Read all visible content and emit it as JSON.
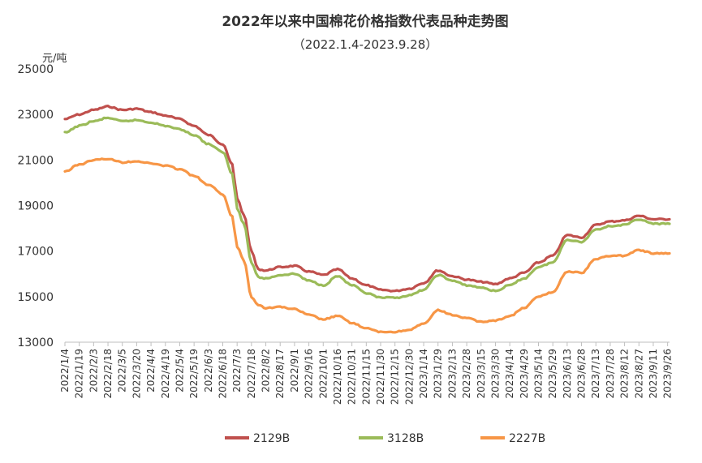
{
  "chart_data": {
    "type": "line",
    "title": "2022年以来中国棉花价格指数代表品种走势图",
    "subtitle": "（2022.1.4-2023.9.28）",
    "ylabel": "元/吨",
    "xlabel": "",
    "ylim": [
      13000,
      25000
    ],
    "yticks": [
      13000,
      15000,
      17000,
      19000,
      21000,
      23000,
      25000
    ],
    "grid": false,
    "legend_position": "bottom",
    "x_tick_labels": [
      "2022/1/4",
      "2022/1/19",
      "2022/2/3",
      "2022/2/18",
      "2022/3/5",
      "2022/3/20",
      "2022/4/4",
      "2022/4/19",
      "2022/5/4",
      "2022/5/19",
      "2022/6/3",
      "2022/6/18",
      "2022/7/3",
      "2022/7/18",
      "2022/8/2",
      "2022/8/17",
      "2022/9/1",
      "2022/9/16",
      "2022/10/1",
      "2022/10/16",
      "2022/10/31",
      "2022/11/15",
      "2022/11/30",
      "2022/12/15",
      "2022/12/30",
      "2023/1/14",
      "2023/1/29",
      "2023/2/13",
      "2023/2/28",
      "2023/3/15",
      "2023/3/30",
      "2023/4/14",
      "2023/4/29",
      "2023/5/14",
      "2023/5/29",
      "2023/6/13",
      "2023/6/28",
      "2023/7/13",
      "2023/7/28",
      "2023/8/12",
      "2023/8/27",
      "2023/9/11",
      "2023/9/26"
    ],
    "x_start": "2022/1/4",
    "x_end": "2023/9/28",
    "series": [
      {
        "name": "2129B",
        "color": "#C0504D",
        "points": [
          [
            "2022/1/4",
            22800
          ],
          [
            "2022/1/19",
            23000
          ],
          [
            "2022/2/3",
            23200
          ],
          [
            "2022/2/18",
            23350
          ],
          [
            "2022/3/5",
            23200
          ],
          [
            "2022/3/20",
            23250
          ],
          [
            "2022/4/4",
            23100
          ],
          [
            "2022/4/19",
            22950
          ],
          [
            "2022/5/4",
            22800
          ],
          [
            "2022/5/19",
            22500
          ],
          [
            "2022/6/3",
            22100
          ],
          [
            "2022/6/18",
            21700
          ],
          [
            "2022/6/28",
            20800
          ],
          [
            "2022/7/3",
            19300
          ],
          [
            "2022/7/10",
            18600
          ],
          [
            "2022/7/18",
            17000
          ],
          [
            "2022/7/25",
            16200
          ],
          [
            "2022/8/2",
            16150
          ],
          [
            "2022/8/17",
            16300
          ],
          [
            "2022/9/1",
            16350
          ],
          [
            "2022/9/16",
            16100
          ],
          [
            "2022/10/1",
            15950
          ],
          [
            "2022/10/16",
            16200
          ],
          [
            "2022/10/31",
            15800
          ],
          [
            "2022/11/15",
            15500
          ],
          [
            "2022/11/30",
            15300
          ],
          [
            "2022/12/15",
            15250
          ],
          [
            "2022/12/30",
            15350
          ],
          [
            "2023/1/14",
            15600
          ],
          [
            "2023/1/29",
            16150
          ],
          [
            "2023/2/13",
            15900
          ],
          [
            "2023/2/28",
            15750
          ],
          [
            "2023/3/15",
            15650
          ],
          [
            "2023/3/30",
            15550
          ],
          [
            "2023/4/14",
            15800
          ],
          [
            "2023/4/29",
            16050
          ],
          [
            "2023/5/14",
            16500
          ],
          [
            "2023/5/29",
            16800
          ],
          [
            "2023/6/13",
            17700
          ],
          [
            "2023/6/28",
            17600
          ],
          [
            "2023/7/13",
            18150
          ],
          [
            "2023/7/28",
            18300
          ],
          [
            "2023/8/12",
            18350
          ],
          [
            "2023/8/27",
            18550
          ],
          [
            "2023/9/11",
            18400
          ],
          [
            "2023/9/28",
            18400
          ]
        ]
      },
      {
        "name": "3128B",
        "color": "#9BBB59",
        "points": [
          [
            "2022/1/4",
            22200
          ],
          [
            "2022/1/19",
            22500
          ],
          [
            "2022/2/3",
            22700
          ],
          [
            "2022/2/18",
            22850
          ],
          [
            "2022/3/5",
            22700
          ],
          [
            "2022/3/20",
            22750
          ],
          [
            "2022/4/4",
            22650
          ],
          [
            "2022/4/19",
            22500
          ],
          [
            "2022/5/4",
            22350
          ],
          [
            "2022/5/19",
            22100
          ],
          [
            "2022/6/3",
            21700
          ],
          [
            "2022/6/18",
            21350
          ],
          [
            "2022/6/28",
            20400
          ],
          [
            "2022/7/3",
            18900
          ],
          [
            "2022/7/10",
            18200
          ],
          [
            "2022/7/18",
            16500
          ],
          [
            "2022/7/25",
            15850
          ],
          [
            "2022/8/2",
            15800
          ],
          [
            "2022/8/17",
            15950
          ],
          [
            "2022/9/1",
            16000
          ],
          [
            "2022/9/16",
            15700
          ],
          [
            "2022/10/1",
            15500
          ],
          [
            "2022/10/16",
            15900
          ],
          [
            "2022/10/31",
            15500
          ],
          [
            "2022/11/15",
            15150
          ],
          [
            "2022/11/30",
            14950
          ],
          [
            "2022/12/15",
            14950
          ],
          [
            "2022/12/30",
            15050
          ],
          [
            "2023/1/14",
            15300
          ],
          [
            "2023/1/29",
            15950
          ],
          [
            "2023/2/13",
            15700
          ],
          [
            "2023/2/28",
            15500
          ],
          [
            "2023/3/15",
            15400
          ],
          [
            "2023/3/30",
            15250
          ],
          [
            "2023/4/14",
            15500
          ],
          [
            "2023/4/29",
            15800
          ],
          [
            "2023/5/14",
            16300
          ],
          [
            "2023/5/29",
            16500
          ],
          [
            "2023/6/13",
            17500
          ],
          [
            "2023/6/28",
            17400
          ],
          [
            "2023/7/13",
            17950
          ],
          [
            "2023/7/28",
            18100
          ],
          [
            "2023/8/12",
            18150
          ],
          [
            "2023/8/27",
            18400
          ],
          [
            "2023/9/11",
            18200
          ],
          [
            "2023/9/28",
            18200
          ]
        ]
      },
      {
        "name": "2227B",
        "color": "#F79646",
        "points": [
          [
            "2022/1/4",
            20500
          ],
          [
            "2022/1/19",
            20800
          ],
          [
            "2022/2/3",
            21000
          ],
          [
            "2022/2/18",
            21050
          ],
          [
            "2022/3/5",
            20900
          ],
          [
            "2022/3/20",
            20950
          ],
          [
            "2022/4/4",
            20850
          ],
          [
            "2022/4/19",
            20750
          ],
          [
            "2022/5/4",
            20600
          ],
          [
            "2022/5/19",
            20300
          ],
          [
            "2022/6/3",
            19900
          ],
          [
            "2022/6/18",
            19500
          ],
          [
            "2022/6/28",
            18500
          ],
          [
            "2022/7/3",
            17200
          ],
          [
            "2022/7/10",
            16600
          ],
          [
            "2022/7/18",
            15000
          ],
          [
            "2022/7/25",
            14650
          ],
          [
            "2022/8/2",
            14500
          ],
          [
            "2022/8/17",
            14550
          ],
          [
            "2022/9/1",
            14450
          ],
          [
            "2022/9/16",
            14200
          ],
          [
            "2022/10/1",
            14000
          ],
          [
            "2022/10/16",
            14150
          ],
          [
            "2022/10/31",
            13850
          ],
          [
            "2022/11/15",
            13600
          ],
          [
            "2022/11/30",
            13450
          ],
          [
            "2022/12/15",
            13450
          ],
          [
            "2022/12/30",
            13550
          ],
          [
            "2023/1/14",
            13800
          ],
          [
            "2023/1/29",
            14400
          ],
          [
            "2023/2/13",
            14200
          ],
          [
            "2023/2/28",
            14050
          ],
          [
            "2023/3/15",
            13900
          ],
          [
            "2023/3/30",
            13950
          ],
          [
            "2023/4/14",
            14150
          ],
          [
            "2023/4/29",
            14500
          ],
          [
            "2023/5/14",
            15000
          ],
          [
            "2023/5/29",
            15200
          ],
          [
            "2023/6/13",
            16100
          ],
          [
            "2023/6/28",
            16050
          ],
          [
            "2023/7/13",
            16650
          ],
          [
            "2023/7/28",
            16800
          ],
          [
            "2023/8/12",
            16800
          ],
          [
            "2023/8/27",
            17050
          ],
          [
            "2023/9/11",
            16900
          ],
          [
            "2023/9/28",
            16900
          ]
        ]
      }
    ]
  }
}
